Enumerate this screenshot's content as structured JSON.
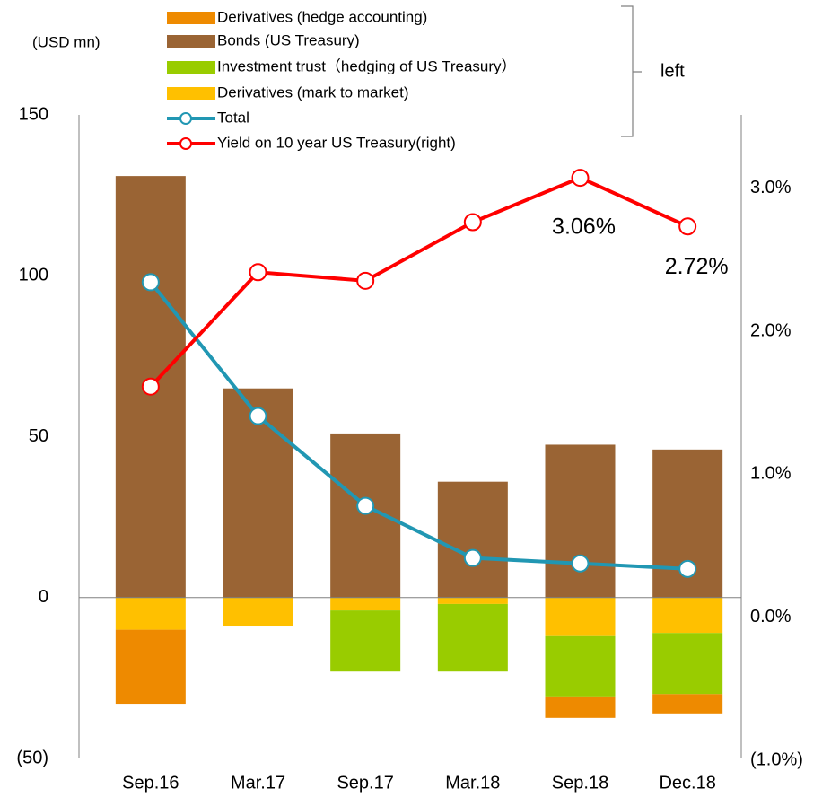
{
  "chart_data": {
    "type": "bar",
    "unit_label": "(USD mn)",
    "legend_group_label": "left",
    "categories": [
      "Sep.16",
      "Mar.17",
      "Sep.17",
      "Mar.18",
      "Sep.18",
      "Dec.18"
    ],
    "ylim": [
      -50,
      150
    ],
    "yticks": [
      {
        "value": -50,
        "label": "(50)"
      },
      0,
      50,
      100,
      150
    ],
    "y2lim": [
      -1,
      3.5
    ],
    "y2ticks": [
      {
        "value": -1,
        "label": "(1.0%)"
      },
      {
        "value": 0,
        "label": "0.0%"
      },
      {
        "value": 1,
        "label": "1.0%"
      },
      {
        "value": 2,
        "label": "2.0%"
      },
      {
        "value": 3,
        "label": "3.0%"
      }
    ],
    "series": [
      {
        "name": "Derivatives (hedge accounting)",
        "type": "bar",
        "color": "#ee8a00",
        "values": [
          -23,
          0,
          0,
          0,
          -6.4,
          -6
        ]
      },
      {
        "name": "Bonds (US Treasury)",
        "type": "bar",
        "color": "#9a6434",
        "values": [
          131,
          65,
          51,
          36,
          47.5,
          46
        ]
      },
      {
        "name": "Investment trust（hedging of US Treasury）",
        "type": "bar",
        "color": "#99cc00",
        "values": [
          0,
          0,
          -19,
          -21,
          -19,
          -19
        ]
      },
      {
        "name": "Derivatives (mark to market)",
        "type": "bar",
        "color": "#ffc000",
        "values": [
          -10,
          -9,
          -4,
          -2,
          -12,
          -11
        ]
      },
      {
        "name": "Total",
        "type": "line",
        "color": "#2197b3",
        "values": [
          98,
          56.4,
          28.5,
          12.3,
          10.6,
          8.9
        ]
      },
      {
        "name": "Yield on 10 year US Treasury(right)",
        "type": "line",
        "axis": "y2",
        "color": "#ff0000",
        "values": [
          1.6,
          2.4,
          2.34,
          2.75,
          3.06,
          2.72
        ],
        "value_labels": [
          null,
          null,
          null,
          null,
          "3.06%",
          "2.72%"
        ]
      }
    ]
  }
}
